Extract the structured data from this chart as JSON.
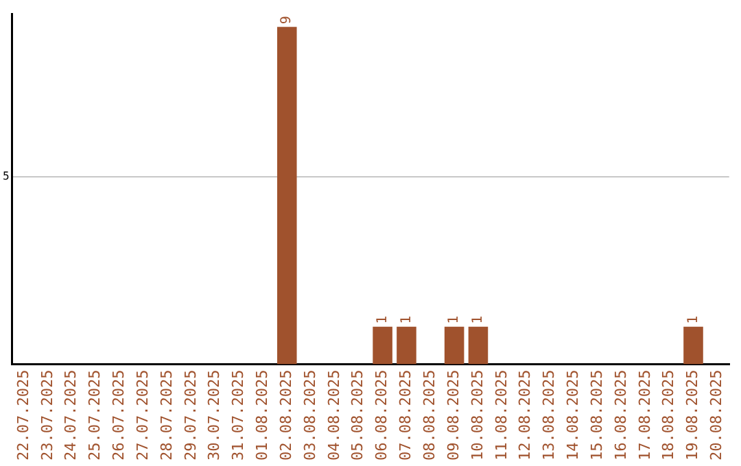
{
  "chart_data": {
    "type": "bar",
    "categories": [
      "22.07.2025",
      "23.07.2025",
      "24.07.2025",
      "25.07.2025",
      "26.07.2025",
      "27.07.2025",
      "28.07.2025",
      "29.07.2025",
      "30.07.2025",
      "31.07.2025",
      "01.08.2025",
      "02.08.2025",
      "03.08.2025",
      "04.08.2025",
      "05.08.2025",
      "06.08.2025",
      "07.08.2025",
      "08.08.2025",
      "09.08.2025",
      "10.08.2025",
      "11.08.2025",
      "12.08.2025",
      "13.08.2025",
      "14.08.2025",
      "15.08.2025",
      "16.08.2025",
      "17.08.2025",
      "18.08.2025",
      "19.08.2025",
      "20.08.2025"
    ],
    "values": [
      0,
      0,
      0,
      0,
      0,
      0,
      0,
      0,
      0,
      0,
      0,
      9,
      0,
      0,
      0,
      1,
      1,
      0,
      1,
      1,
      0,
      0,
      0,
      0,
      0,
      0,
      0,
      0,
      1,
      0
    ],
    "value_labels": [
      null,
      null,
      null,
      null,
      null,
      null,
      null,
      null,
      null,
      null,
      null,
      "9",
      null,
      null,
      null,
      "1",
      "1",
      null,
      "1",
      "1",
      null,
      null,
      null,
      null,
      null,
      null,
      null,
      null,
      "1",
      null
    ],
    "color": "#a0522d",
    "ylim": [
      0,
      9.35
    ],
    "yticks": [
      5
    ],
    "grid": "y",
    "legend": false
  }
}
